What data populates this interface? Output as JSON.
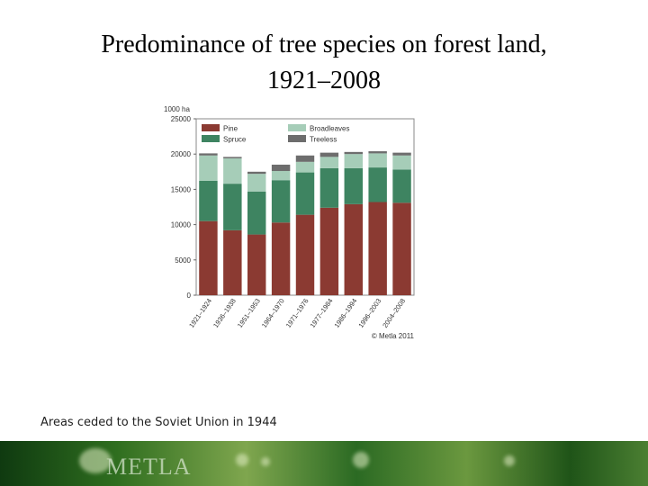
{
  "page": {
    "title_line1": "Predominance of tree species on forest land,",
    "title_line2": "1921–2008",
    "caption": "Areas ceded to the Soviet Union in 1944",
    "footer_logo": "METLA"
  },
  "chart_data": {
    "type": "bar",
    "stacked": true,
    "unit_label": "1000 ha",
    "credit": "© Metla 2011",
    "ylim": [
      0,
      25000
    ],
    "yticks": [
      0,
      5000,
      10000,
      15000,
      20000,
      25000
    ],
    "ytick_labels": [
      "0",
      "5000",
      "10000",
      "15000",
      "20000",
      "25000"
    ],
    "categories": [
      "1921–1924",
      "1936–1938",
      "1951–1953",
      "1964–1970",
      "1971–1976",
      "1977–1984",
      "1986–1994",
      "1996–2003",
      "2004–2008"
    ],
    "series": [
      {
        "name": "Pine",
        "color": "#8b3a32",
        "values": [
          10500,
          9200,
          8600,
          10300,
          11400,
          12400,
          12900,
          13200,
          13100
        ]
      },
      {
        "name": "Spruce",
        "color": "#3e8461",
        "values": [
          5700,
          6600,
          6100,
          6000,
          6000,
          5600,
          5100,
          4900,
          4700
        ]
      },
      {
        "name": "Broadleaves",
        "color": "#a6cdb8",
        "values": [
          3600,
          3600,
          2500,
          1300,
          1500,
          1600,
          2000,
          2000,
          2000
        ]
      },
      {
        "name": "Treeless",
        "color": "#6d6d6d",
        "values": [
          300,
          200,
          300,
          900,
          900,
          600,
          300,
          300,
          400
        ]
      }
    ],
    "legend": {
      "placement": "top-left",
      "order": [
        "Pine",
        "Broadleaves",
        "Spruce",
        "Treeless"
      ]
    },
    "grid": false
  }
}
